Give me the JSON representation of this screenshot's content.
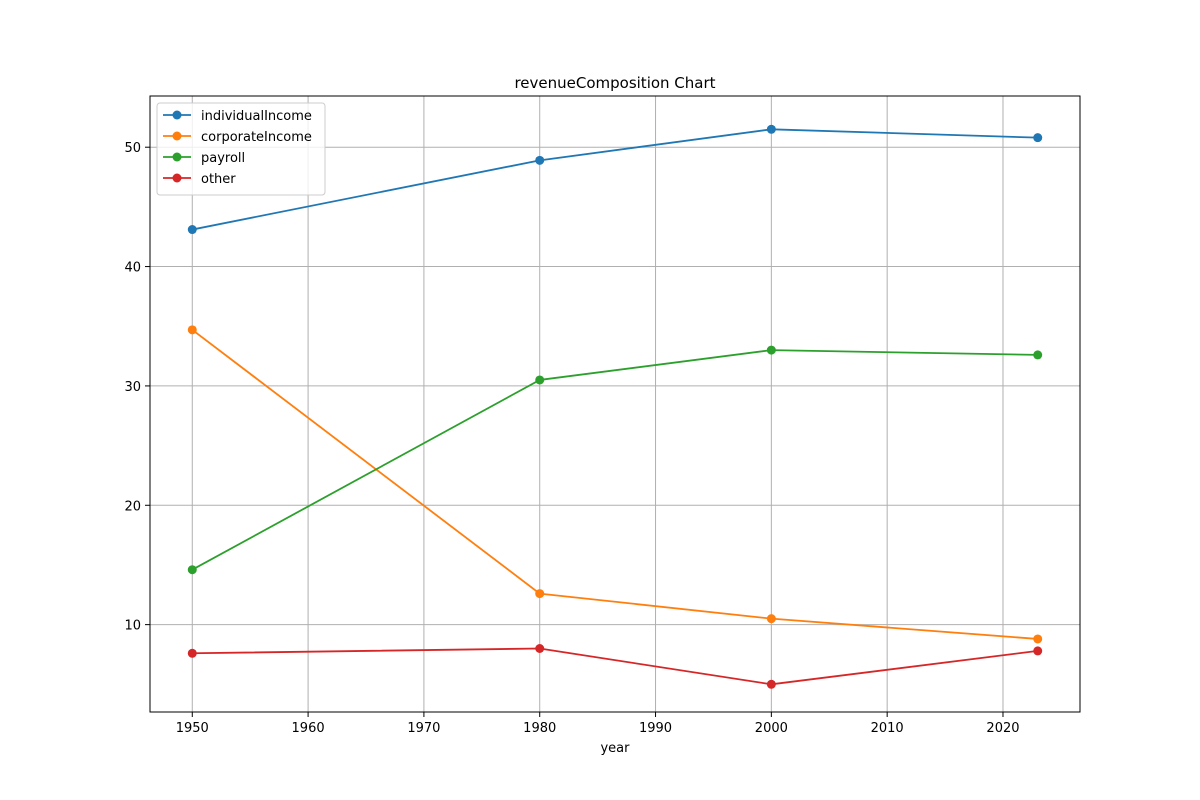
{
  "chart_data": {
    "type": "line",
    "title": "revenueComposition Chart",
    "xlabel": "year",
    "ylabel": "",
    "x": [
      1950,
      1980,
      2000,
      2023
    ],
    "xlim": [
      1946.35,
      2026.65
    ],
    "ylim": [
      2.68,
      54.29
    ],
    "xticks": [
      1950,
      1960,
      1970,
      1980,
      1990,
      2000,
      2010,
      2020
    ],
    "yticks": [
      10,
      20,
      30,
      40,
      50
    ],
    "grid": true,
    "legend_position": "top-left",
    "series": [
      {
        "name": "individualIncome",
        "color": "#1f77b4",
        "values": [
          43.1,
          48.9,
          51.5,
          50.8
        ]
      },
      {
        "name": "corporateIncome",
        "color": "#ff7f0e",
        "values": [
          34.7,
          12.6,
          10.5,
          8.8
        ]
      },
      {
        "name": "payroll",
        "color": "#2ca02c",
        "values": [
          14.6,
          30.5,
          33.0,
          32.6
        ]
      },
      {
        "name": "other",
        "color": "#d62728",
        "values": [
          7.6,
          8.0,
          5.0,
          7.8
        ]
      }
    ]
  }
}
